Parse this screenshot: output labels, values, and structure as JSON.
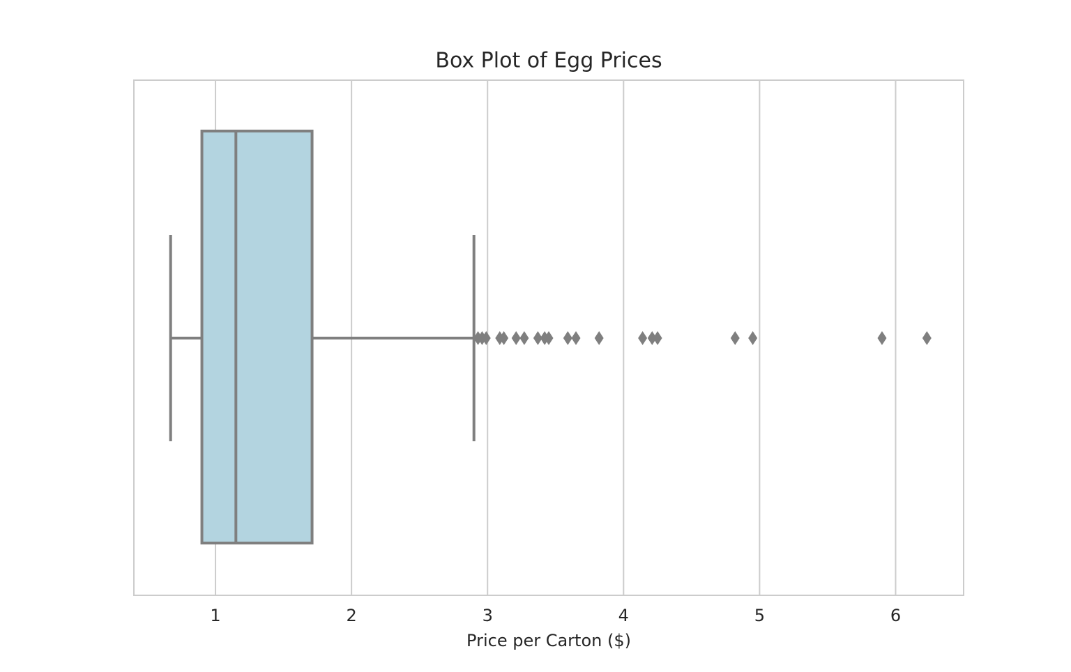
{
  "chart_data": {
    "type": "box",
    "title": "Box Plot of Egg Prices",
    "x_label": "Price per Carton ($)",
    "xlim": [
      0.4,
      6.5
    ],
    "xticks": [
      1,
      2,
      3,
      4,
      5,
      6
    ],
    "whisker_low": 0.67,
    "q1": 0.9,
    "median": 1.15,
    "q3": 1.71,
    "whisker_high": 2.9,
    "outliers": [
      2.93,
      2.96,
      2.99,
      3.09,
      3.12,
      3.21,
      3.27,
      3.37,
      3.42,
      3.45,
      3.59,
      3.65,
      3.82,
      4.14,
      4.21,
      4.25,
      4.82,
      4.95,
      5.9,
      6.23
    ],
    "color": "#b3d4e0",
    "line_color": "#7f7f7f",
    "grid": true
  }
}
